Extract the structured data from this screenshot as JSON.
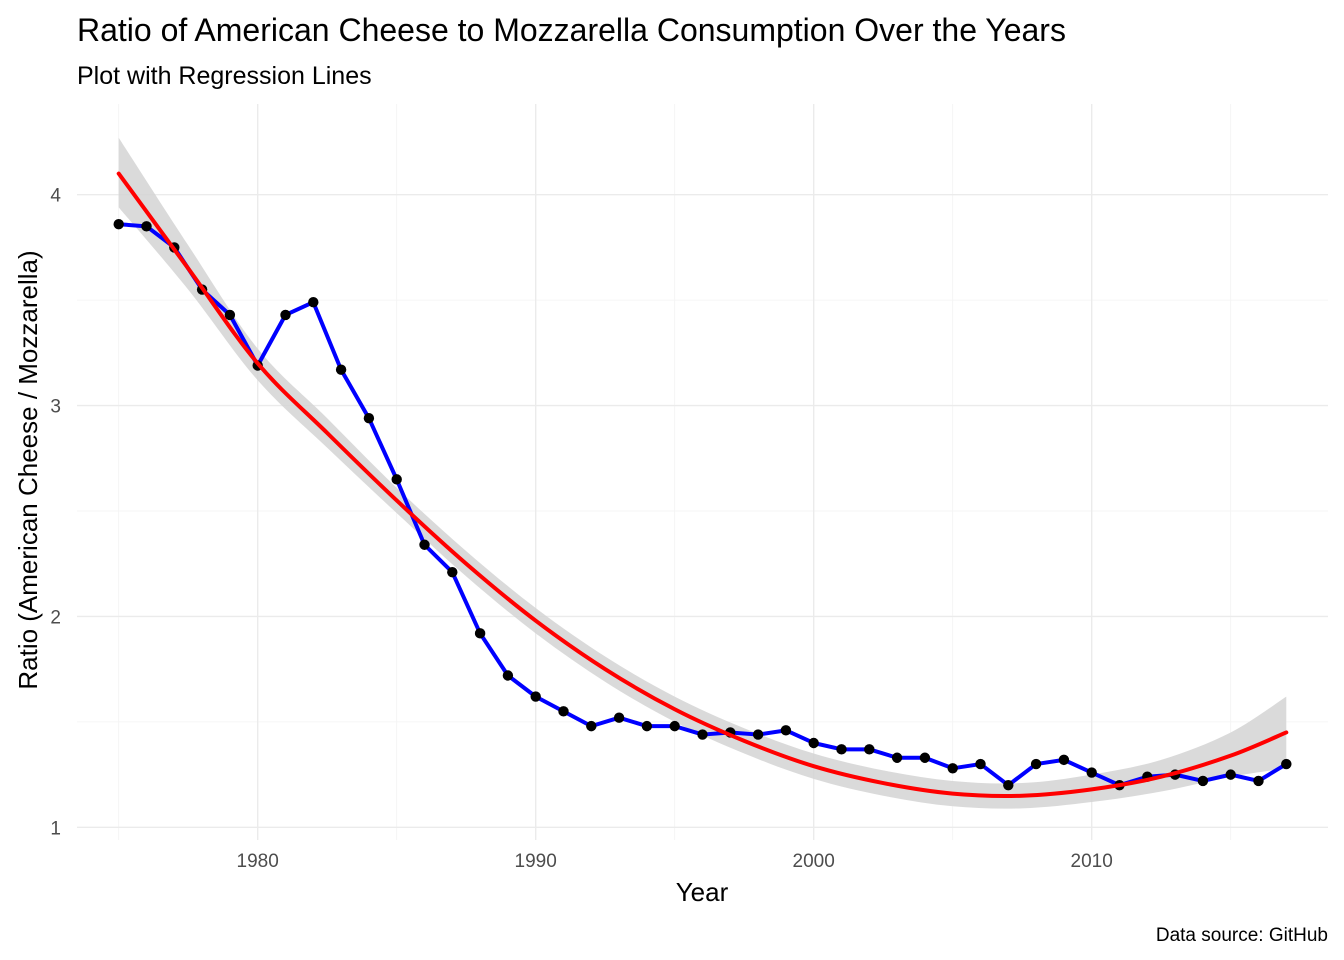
{
  "chart_data": {
    "type": "line",
    "title": "Ratio of American Cheese to Mozzarella Consumption Over the Years",
    "subtitle": "Plot with Regression Lines",
    "xlabel": "Year",
    "ylabel": "Ratio (American Cheese / Mozzarella)",
    "caption": "Data source: GitHub",
    "xlim": [
      1973.5,
      2018.5
    ],
    "ylim": [
      0.94,
      4.43
    ],
    "x_ticks": [
      1980,
      1990,
      2000,
      2010
    ],
    "x_tick_labels": [
      "1980",
      "1990",
      "2000",
      "2010"
    ],
    "y_ticks": [
      1,
      2,
      3,
      4
    ],
    "y_tick_labels": [
      "1",
      "2",
      "3",
      "4"
    ],
    "grid": true,
    "legend": "none",
    "colors": {
      "observed_line": "#0000ff",
      "points": "#000000",
      "regression_line": "#ff0000",
      "confidence_band": "#d3d3d3"
    },
    "series": [
      {
        "kind": "line+points",
        "x": [
          1975,
          1976,
          1977,
          1978,
          1979,
          1980,
          1981,
          1982,
          1983,
          1984,
          1985,
          1986,
          1987,
          1988,
          1989,
          1990,
          1991,
          1992,
          1993,
          1994,
          1995,
          1996,
          1997,
          1998,
          1999,
          2000,
          2001,
          2002,
          2003,
          2004,
          2005,
          2006,
          2007,
          2008,
          2009,
          2010,
          2011,
          2012,
          2013,
          2014,
          2015,
          2016,
          2017
        ],
        "y": [
          3.86,
          3.85,
          3.75,
          3.55,
          3.43,
          3.19,
          3.43,
          3.49,
          3.17,
          2.94,
          2.65,
          2.34,
          2.21,
          1.92,
          1.72,
          1.62,
          1.55,
          1.48,
          1.52,
          1.48,
          1.48,
          1.44,
          1.45,
          1.44,
          1.46,
          1.4,
          1.37,
          1.37,
          1.33,
          1.33,
          1.28,
          1.3,
          1.2,
          1.3,
          1.32,
          1.26,
          1.2,
          1.24,
          1.25,
          1.22,
          1.25,
          1.22,
          1.3
        ]
      },
      {
        "kind": "regression",
        "x": [
          1975,
          1977.5,
          1980,
          1982.5,
          1985,
          1987.5,
          1990,
          1992.5,
          1995,
          1997.5,
          2000,
          2002.5,
          2005,
          2007.5,
          2010,
          2012.5,
          2015,
          2017
        ],
        "y": [
          4.1,
          3.65,
          3.2,
          2.87,
          2.55,
          2.25,
          1.98,
          1.75,
          1.56,
          1.41,
          1.29,
          1.21,
          1.16,
          1.15,
          1.18,
          1.24,
          1.34,
          1.45
        ],
        "ci_lower": [
          3.94,
          3.55,
          3.12,
          2.8,
          2.49,
          2.19,
          1.92,
          1.69,
          1.5,
          1.35,
          1.23,
          1.15,
          1.1,
          1.09,
          1.12,
          1.17,
          1.24,
          1.28
        ],
        "ci_upper": [
          4.27,
          3.76,
          3.27,
          2.94,
          2.61,
          2.31,
          2.04,
          1.81,
          1.62,
          1.47,
          1.35,
          1.27,
          1.22,
          1.21,
          1.25,
          1.32,
          1.45,
          1.62
        ]
      }
    ]
  }
}
